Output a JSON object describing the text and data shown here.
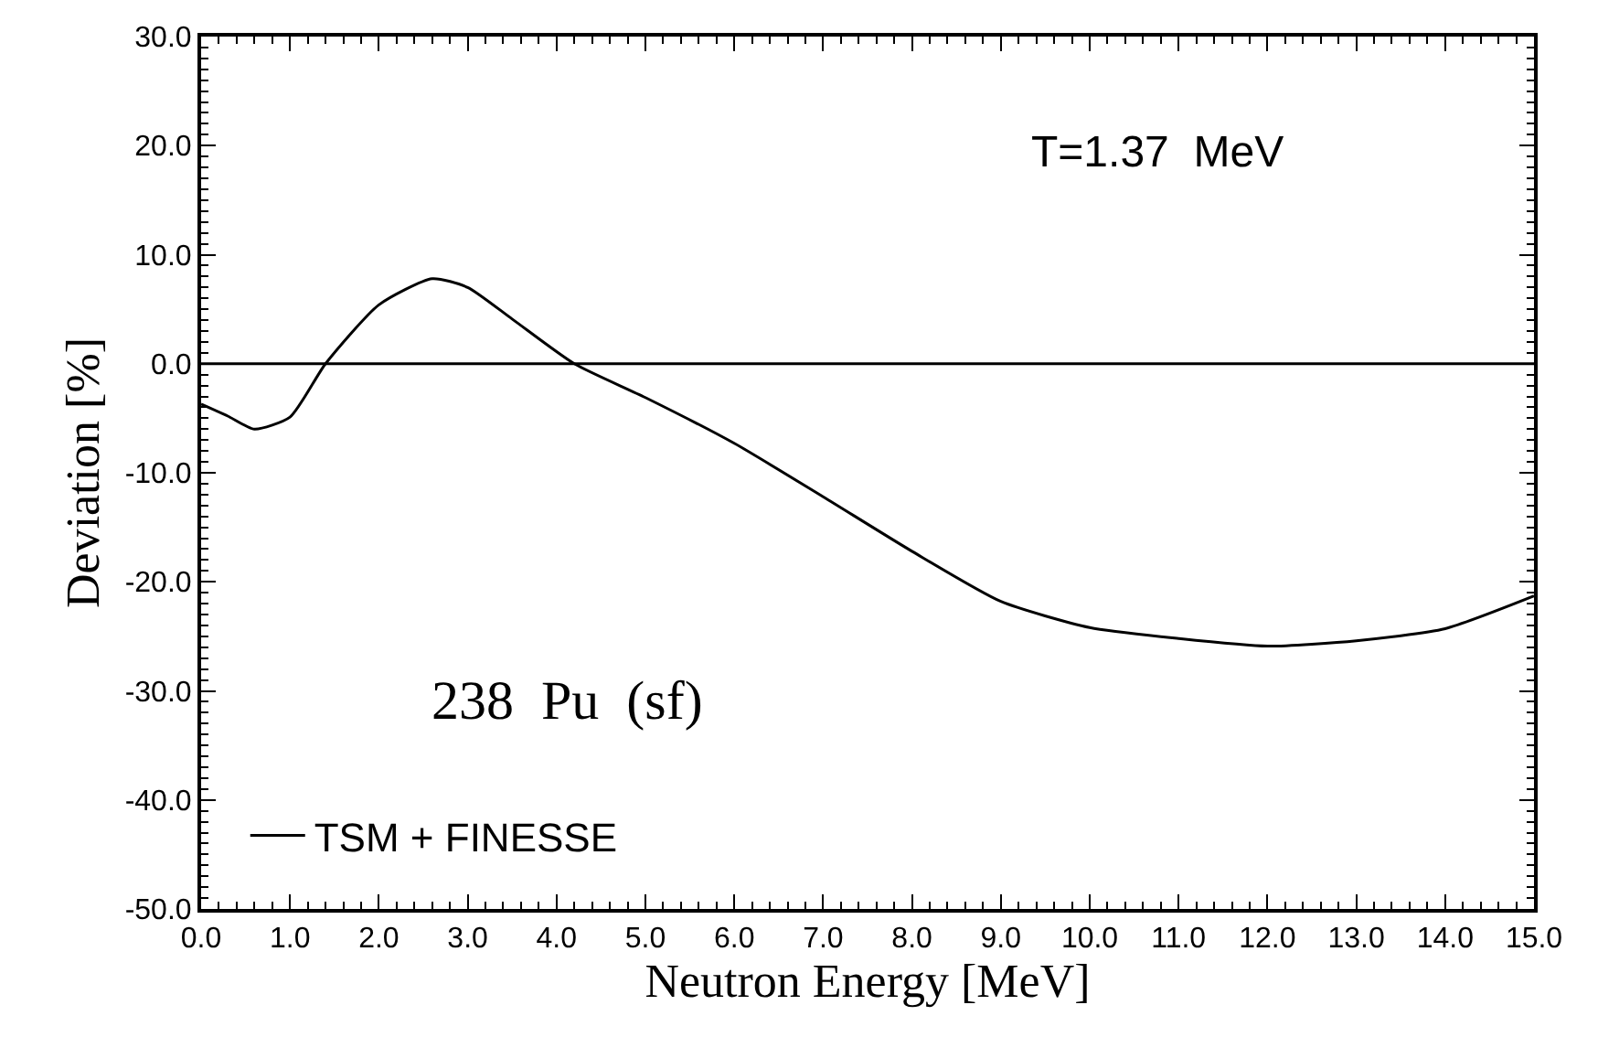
{
  "chart_data": {
    "type": "line",
    "xlabel": "Neutron Energy [MeV]",
    "ylabel": "Deviation [%]",
    "annotations": [
      "T=1.37  MeV",
      "238  Pu  (sf)"
    ],
    "series": [
      {
        "name": "TSM + FINESSE",
        "color": "#000000",
        "x": [
          0,
          0.3,
          0.6,
          1.0,
          1.4,
          2.0,
          2.6,
          3.0,
          3.5,
          4.2,
          5.0,
          6.0,
          7.0,
          8.0,
          9.0,
          10.0,
          11.0,
          12.0,
          13.0,
          14.0,
          15.0
        ],
        "values": [
          -3.7,
          -4.8,
          -6.0,
          -4.9,
          0,
          5.4,
          7.8,
          7.0,
          4.1,
          0,
          -3.1,
          -7.3,
          -12.2,
          -17.2,
          -21.8,
          -24.2,
          -25.2,
          -25.9,
          -25.4,
          -24.3,
          -21.3
        ]
      }
    ],
    "ref_lines": [
      {
        "axis": "y",
        "value": 0,
        "color": "#000000"
      }
    ],
    "xlim": [
      0,
      15
    ],
    "ylim": [
      -50,
      30
    ],
    "xticks": [
      {
        "value": 0,
        "label": "0.0"
      },
      {
        "value": 1,
        "label": "1.0"
      },
      {
        "value": 2,
        "label": "2.0"
      },
      {
        "value": 3,
        "label": "3.0"
      },
      {
        "value": 4,
        "label": "4.0"
      },
      {
        "value": 5,
        "label": "5.0"
      },
      {
        "value": 6,
        "label": "6.0"
      },
      {
        "value": 7,
        "label": "7.0"
      },
      {
        "value": 8,
        "label": "8.0"
      },
      {
        "value": 9,
        "label": "9.0"
      },
      {
        "value": 10,
        "label": "10.0"
      },
      {
        "value": 11,
        "label": "11.0"
      },
      {
        "value": 12,
        "label": "12.0"
      },
      {
        "value": 13,
        "label": "13.0"
      },
      {
        "value": 14,
        "label": "14.0"
      },
      {
        "value": 15,
        "label": "15.0"
      }
    ],
    "yticks": [
      {
        "value": -50,
        "label": "-50.0"
      },
      {
        "value": -40,
        "label": "-40.0"
      },
      {
        "value": -30,
        "label": "-30.0"
      },
      {
        "value": -20,
        "label": "-20.0"
      },
      {
        "value": -10,
        "label": "-10.0"
      },
      {
        "value": 0,
        "label": "0.0"
      },
      {
        "value": 10,
        "label": "10.0"
      },
      {
        "value": 20,
        "label": "20.0"
      },
      {
        "value": 30,
        "label": "30.0"
      }
    ],
    "legend": "bottom left",
    "marker": "none",
    "line_style": "solid"
  }
}
